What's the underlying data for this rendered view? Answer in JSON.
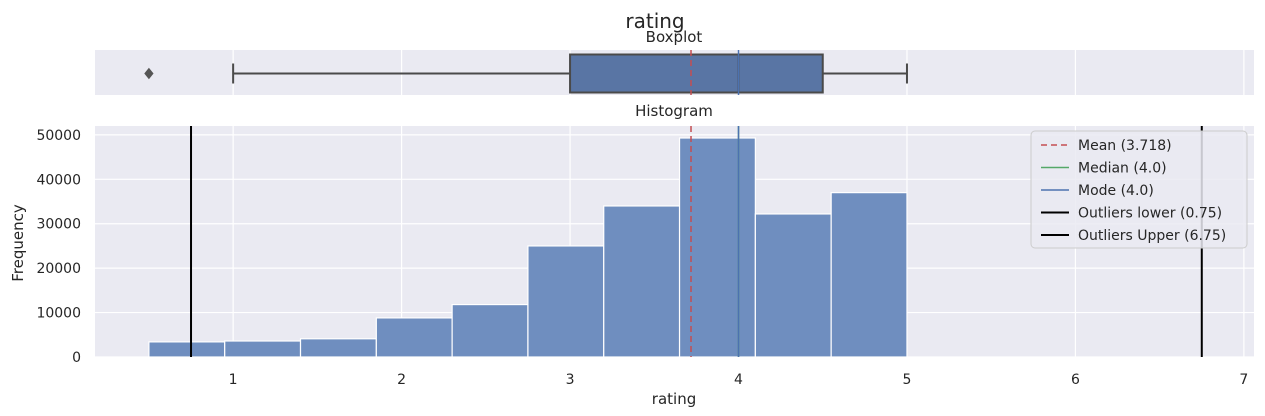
{
  "title": "rating",
  "colors": {
    "panel_bg": "#eaeaf2",
    "grid": "#ffffff",
    "bar_fill": "#6f8ebf",
    "box_fill": "#5975a4",
    "box_line": "#4a4a4a",
    "mean": "#c44e52",
    "median": "#55a868",
    "mode": "#4c72b0",
    "outlier_line": "#000000"
  },
  "chart_data": [
    {
      "type": "box",
      "title": "Boxplot",
      "xlim": [
        0.18,
        7.06
      ],
      "whisker_low": 1.0,
      "q1": 3.0,
      "median": 4.0,
      "q3": 4.5,
      "whisker_high": 5.0,
      "outliers": [
        0.5
      ],
      "mean": 3.718
    },
    {
      "type": "bar",
      "title": "Histogram",
      "xlabel": "rating",
      "ylabel": "Frequency",
      "xlim": [
        0.18,
        7.06
      ],
      "ylim": [
        0,
        52000
      ],
      "x_ticks": [
        1,
        2,
        3,
        4,
        5,
        6,
        7
      ],
      "y_ticks": [
        0,
        10000,
        20000,
        30000,
        40000,
        50000
      ],
      "x_tick_labels": [
        "1",
        "2",
        "3",
        "4",
        "5",
        "6",
        "7"
      ],
      "y_tick_labels": [
        "0",
        "10000",
        "20000",
        "30000",
        "40000",
        "50000"
      ],
      "bins": [
        {
          "x0": 0.5,
          "x1": 0.95,
          "value": 3400
        },
        {
          "x0": 0.95,
          "x1": 1.4,
          "value": 3600
        },
        {
          "x0": 1.4,
          "x1": 1.85,
          "value": 4100
        },
        {
          "x0": 1.85,
          "x1": 2.3,
          "value": 8800
        },
        {
          "x0": 2.3,
          "x1": 2.75,
          "value": 11800
        },
        {
          "x0": 2.75,
          "x1": 3.2,
          "value": 25000
        },
        {
          "x0": 3.2,
          "x1": 3.65,
          "value": 34000
        },
        {
          "x0": 3.65,
          "x1": 4.1,
          "value": 49300
        },
        {
          "x0": 4.1,
          "x1": 4.55,
          "value": 32200
        },
        {
          "x0": 4.55,
          "x1": 5.0,
          "value": 37000
        }
      ],
      "reference_lines": [
        {
          "label": "Mean (3.718)",
          "x": 3.718,
          "color": "#c44e52",
          "dashed": true
        },
        {
          "label": "Median (4.0)",
          "x": 4.0,
          "color": "#55a868",
          "dashed": false
        },
        {
          "label": "Mode (4.0)",
          "x": 4.0,
          "color": "#4c72b0",
          "dashed": false
        },
        {
          "label": "Outliers lower (0.75)",
          "x": 0.75,
          "color": "#000000",
          "dashed": false
        },
        {
          "label": "Outliers Upper (6.75)",
          "x": 6.75,
          "color": "#000000",
          "dashed": false
        }
      ],
      "legend_position": "top-right",
      "grid": true
    }
  ]
}
